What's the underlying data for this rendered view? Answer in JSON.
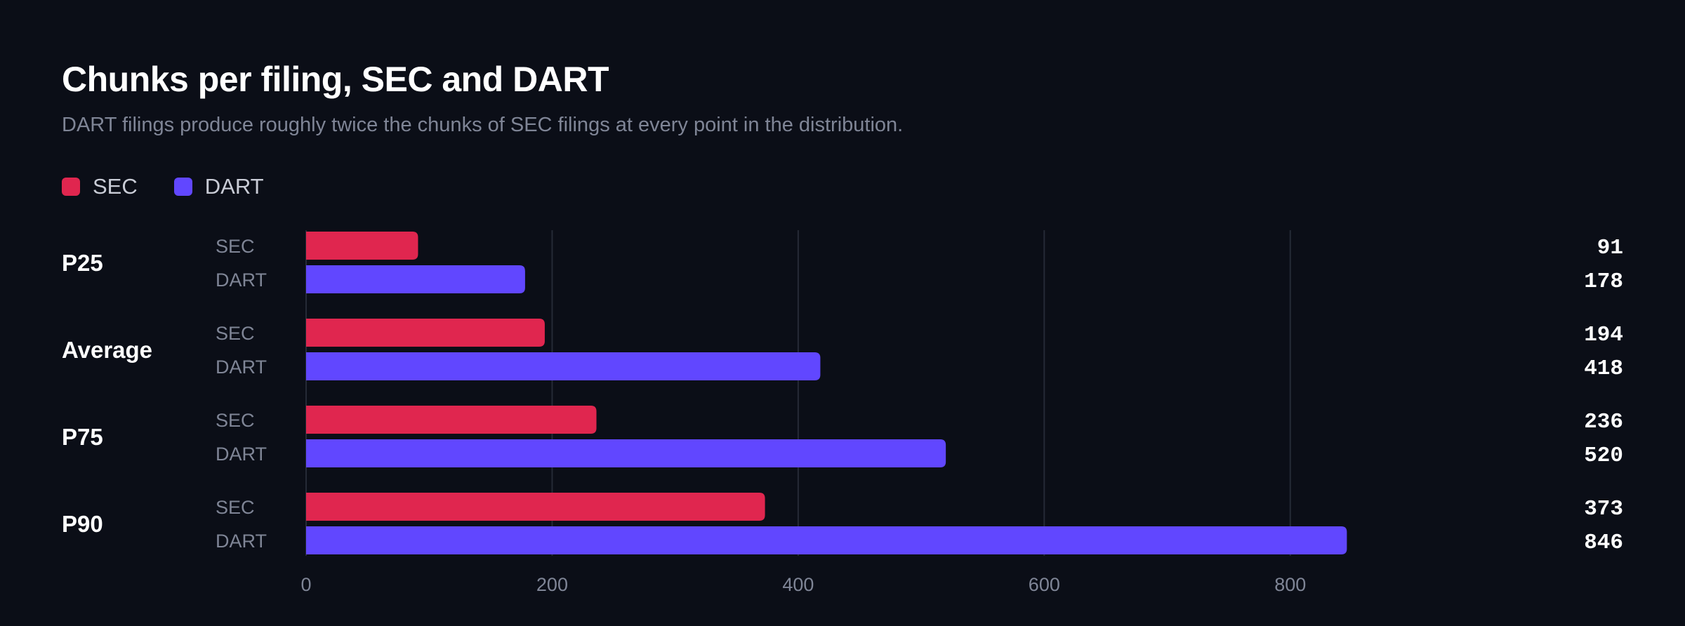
{
  "chart_data": {
    "type": "bar",
    "orientation": "horizontal",
    "title": "Chunks per filing, SEC and DART",
    "subtitle": "DART filings produce roughly twice the chunks of SEC filings at every point in the distribution.",
    "categories": [
      "P25",
      "Average",
      "P75",
      "P90"
    ],
    "series": [
      {
        "name": "SEC",
        "color": "#e0264f",
        "values": [
          91,
          194,
          236,
          373
        ]
      },
      {
        "name": "DART",
        "color": "#6147ff",
        "values": [
          178,
          418,
          520,
          846
        ]
      }
    ],
    "xlim": [
      0,
      900
    ],
    "xticks": [
      0,
      200,
      400,
      600,
      800
    ],
    "grid": true,
    "legend": "top-left"
  }
}
